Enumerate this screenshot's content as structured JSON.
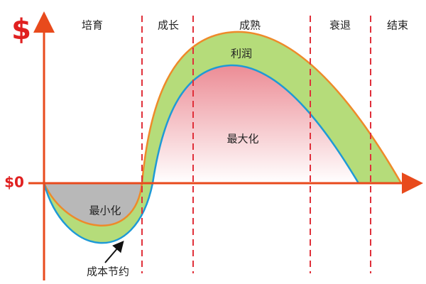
{
  "axis": {
    "currency": "$",
    "zero": "$0"
  },
  "stages": [
    "培育",
    "成长",
    "成熟",
    "衰退",
    "结束"
  ],
  "labels": {
    "profit": "利润",
    "maximize": "最大化",
    "minimize": "最小化",
    "cost_saving": "成本节约"
  }
}
